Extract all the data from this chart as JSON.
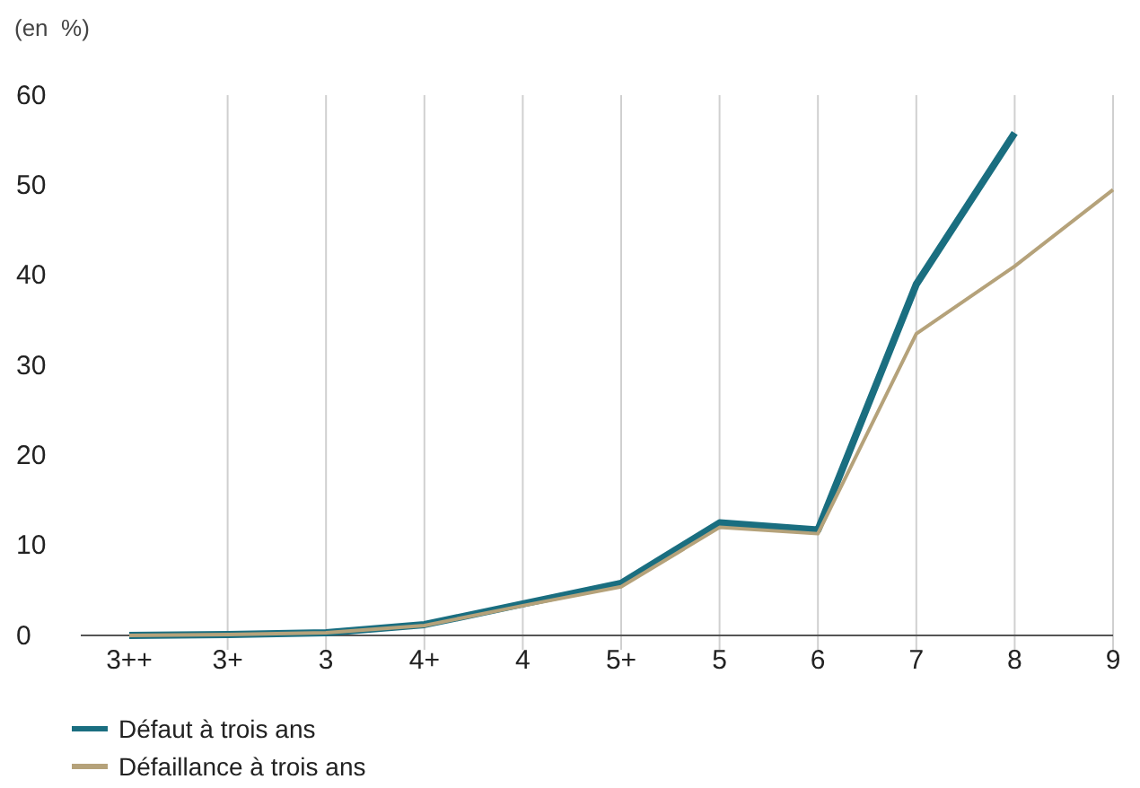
{
  "chart_data": {
    "type": "line",
    "ylabel": "(en  %)",
    "categories": [
      "3++",
      "3+",
      "3",
      "4+",
      "4",
      "5+",
      "5",
      "6",
      "7",
      "8",
      "9"
    ],
    "series": [
      {
        "name": "Défaut à trois ans",
        "color": "#1a6e80",
        "values": [
          0,
          0.1,
          0.3,
          1.2,
          3.5,
          5.8,
          12.5,
          11.7,
          39,
          55.8,
          null
        ]
      },
      {
        "name": "Défaillance à trois ans",
        "color": "#b5a27a",
        "values": [
          0,
          0.1,
          0.3,
          1.1,
          3.3,
          5.4,
          12,
          11.3,
          33.5,
          41,
          49.5
        ]
      }
    ],
    "ylim": [
      0,
      60
    ],
    "yticks": [
      0,
      10,
      20,
      30,
      40,
      50,
      60
    ],
    "grid": "x",
    "legend": "bottom left",
    "marker": "none",
    "line_style": "solid"
  }
}
